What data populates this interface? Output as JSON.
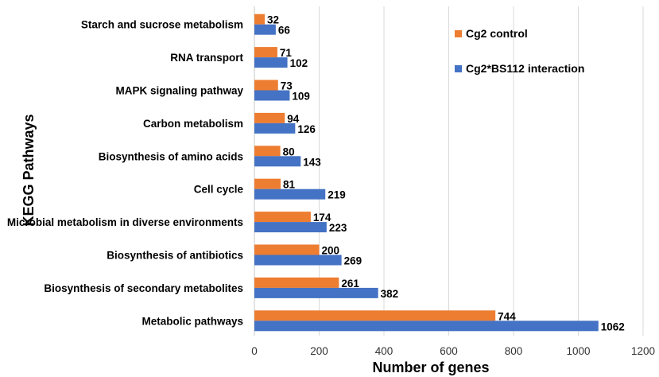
{
  "chart_data": {
    "type": "bar",
    "orientation": "horizontal",
    "title": "",
    "xlabel": "Number of genes",
    "ylabel": "KEGG Pathways",
    "xlim": [
      0,
      1200
    ],
    "xticks": [
      0,
      200,
      400,
      600,
      800,
      1000,
      1200
    ],
    "grid": true,
    "legend_position": "top-right",
    "categories": [
      "Starch and sucrose metabolism",
      "RNA transport",
      "MAPK signaling pathway",
      "Carbon metabolism",
      "Biosynthesis of amino acids",
      "Cell cycle",
      "Microbial metabolism in diverse environments",
      "Biosynthesis of antibiotics",
      "Biosynthesis of secondary metabolites",
      "Metabolic pathways"
    ],
    "series": [
      {
        "name": "Cg2 control",
        "color": "#ED7D31",
        "values": [
          32,
          71,
          73,
          94,
          80,
          81,
          174,
          200,
          261,
          744
        ]
      },
      {
        "name": "Cg2*BS112 interaction",
        "color": "#4472C4",
        "values": [
          66,
          102,
          109,
          126,
          143,
          219,
          223,
          269,
          382,
          1062
        ]
      }
    ]
  }
}
